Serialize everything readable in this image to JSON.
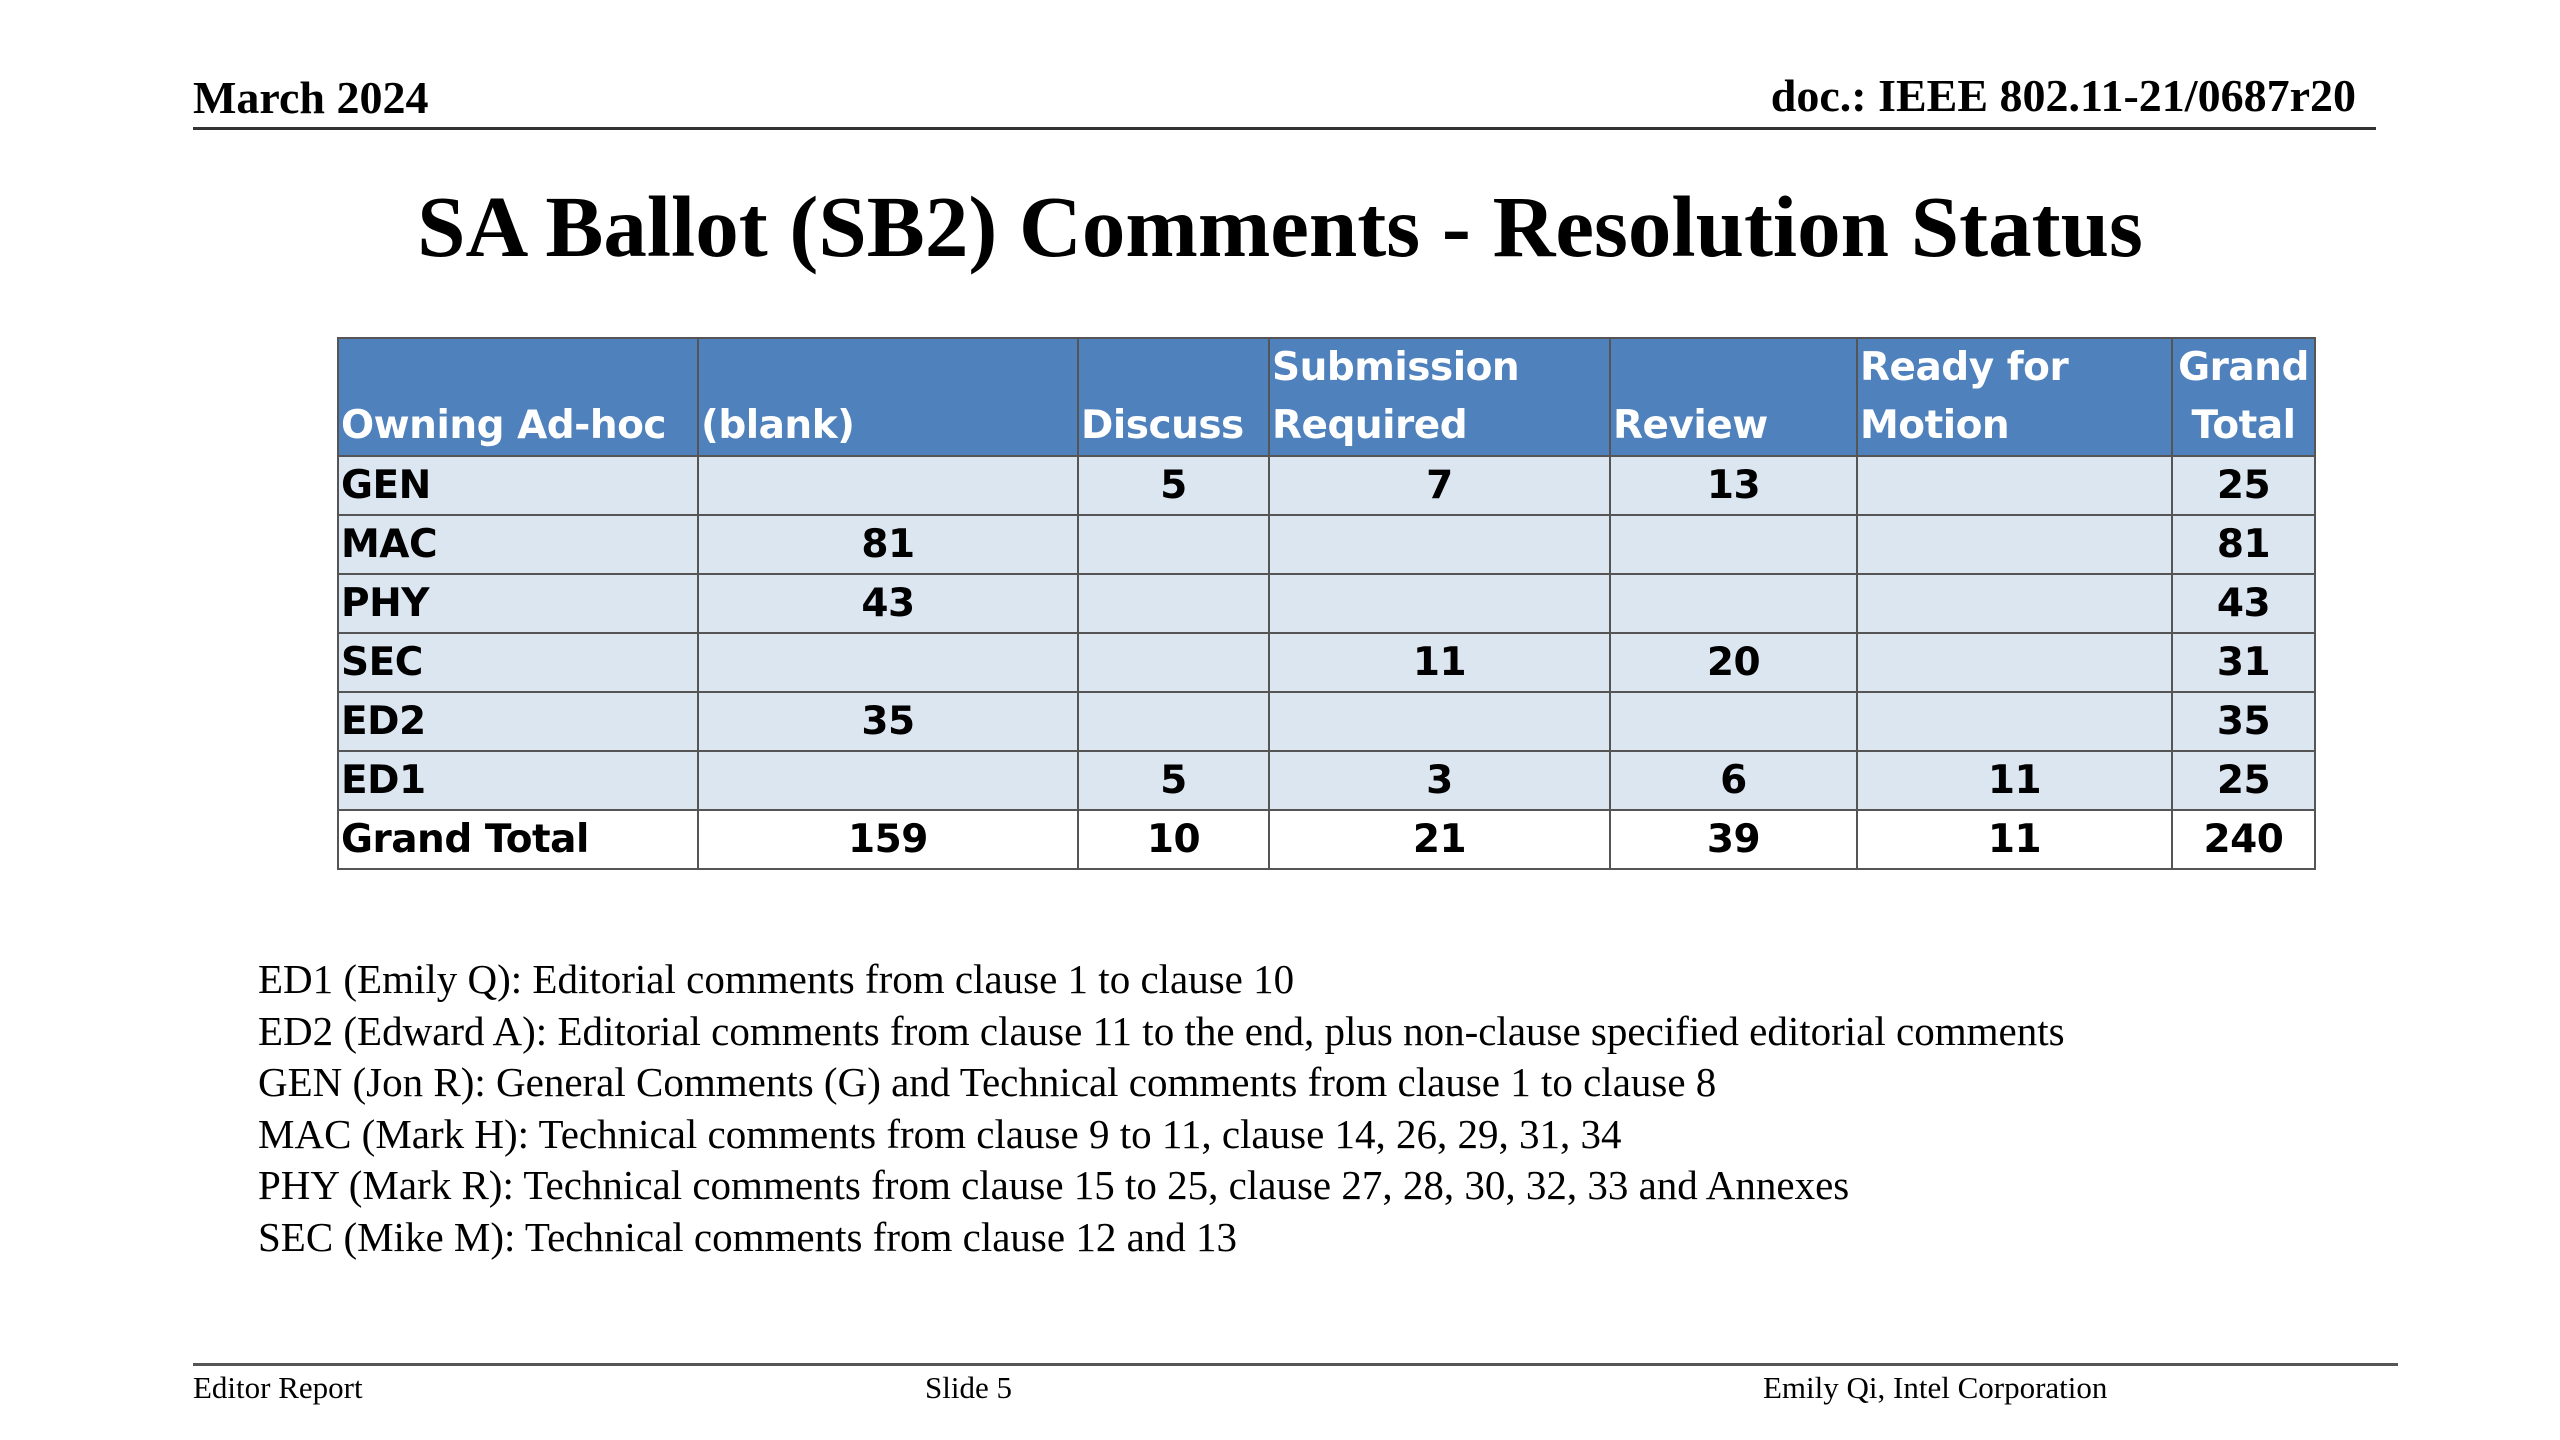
{
  "header": {
    "date": "March 2024",
    "doc": "doc.: IEEE 802.11-21/0687r20"
  },
  "title": "SA Ballot (SB2) Comments - Resolution Status",
  "table": {
    "headers": {
      "owning": "Owning Ad-hoc",
      "blank": "(blank)",
      "discuss": "Discuss",
      "submission": "Submission Required",
      "review": "Review",
      "ready": "Ready for Motion",
      "grand": "Grand Total"
    },
    "rows": [
      {
        "label": "GEN",
        "blank": "",
        "discuss": "5",
        "submission": "7",
        "review": "13",
        "ready": "",
        "grand": "25"
      },
      {
        "label": "MAC",
        "blank": "81",
        "discuss": "",
        "submission": "",
        "review": "",
        "ready": "",
        "grand": "81"
      },
      {
        "label": "PHY",
        "blank": "43",
        "discuss": "",
        "submission": "",
        "review": "",
        "ready": "",
        "grand": "43"
      },
      {
        "label": "SEC",
        "blank": "",
        "discuss": "",
        "submission": "11",
        "review": "20",
        "ready": "",
        "grand": "31"
      },
      {
        "label": "ED2",
        "blank": "35",
        "discuss": "",
        "submission": "",
        "review": "",
        "ready": "",
        "grand": "35"
      },
      {
        "label": "ED1",
        "blank": "",
        "discuss": "5",
        "submission": "3",
        "review": "6",
        "ready": "11",
        "grand": "25"
      }
    ],
    "total": {
      "label": "Grand Total",
      "blank": "159",
      "discuss": "10",
      "submission": "21",
      "review": "39",
      "ready": "11",
      "grand": "240"
    }
  },
  "definitions": [
    "ED1 (Emily Q): Editorial comments from clause 1 to clause 10",
    "ED2 (Edward A): Editorial comments from clause 11 to the end, plus non-clause specified editorial comments",
    "GEN (Jon R): General Comments (G) and Technical comments from clause 1 to clause 8",
    "MAC (Mark H): Technical comments from clause 9 to 11, clause 14, 26, 29, 31, 34",
    "PHY (Mark R): Technical comments from clause 15 to 25, clause 27, 28, 30, 32, 33 and Annexes",
    "SEC (Mike M): Technical comments from clause 12 and 13"
  ],
  "footer": {
    "left": "Editor Report",
    "slide": "Slide 5",
    "author": "Emily Qi, Intel Corporation"
  }
}
